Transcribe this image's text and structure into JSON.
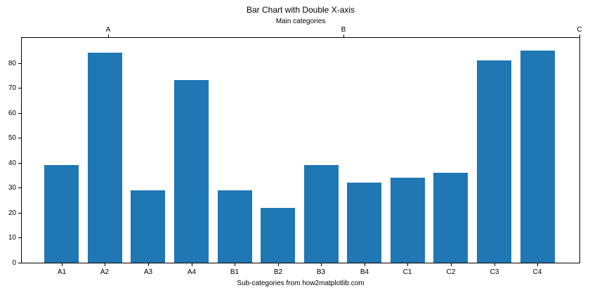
{
  "chart": {
    "title": "Bar Chart with Double X-axis",
    "top_axis_label": "Main categories",
    "bottom_axis_label": "Sub-categories from how2matplotlib.com"
  },
  "chart_data": {
    "type": "bar",
    "title": "Bar Chart with Double X-axis",
    "xlabel": "Sub-categories from how2matplotlib.com",
    "top_xlabel": "Main categories",
    "ylabel": "",
    "categories": [
      "A1",
      "A2",
      "A3",
      "A4",
      "B1",
      "B2",
      "B3",
      "B4",
      "C1",
      "C2",
      "C3",
      "C4"
    ],
    "values": [
      39,
      84,
      29,
      73,
      29,
      22,
      39,
      32,
      34,
      36,
      81,
      85
    ],
    "bar_color": "#1f77b4",
    "ylim": [
      0,
      90
    ],
    "yticks": [
      0,
      10,
      20,
      30,
      40,
      50,
      60,
      70,
      80
    ],
    "grid": false,
    "legend": "none",
    "main_category_ticks": [
      {
        "label": "A",
        "pos": 0.156
      },
      {
        "label": "B",
        "pos": 0.577
      },
      {
        "label": "C",
        "pos": 0.999
      }
    ]
  }
}
